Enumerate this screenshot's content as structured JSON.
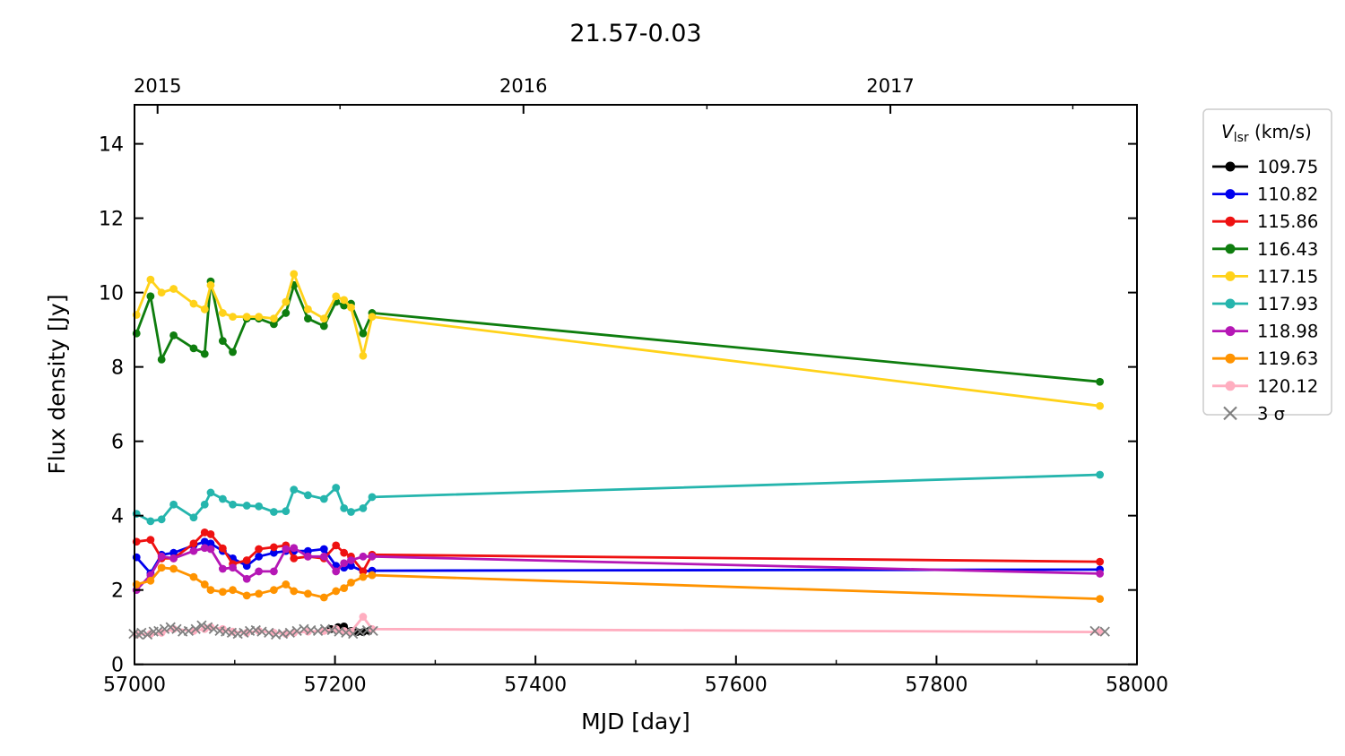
{
  "title": "21.57-0.03",
  "chart_data": {
    "type": "line",
    "title": "21.57-0.03",
    "xlabel": "MJD [day]",
    "ylabel": "Flux density [Jy]",
    "xlim": [
      57000,
      58000
    ],
    "ylim": [
      0,
      15.05
    ],
    "grid": false,
    "legend_position": "outside-right",
    "x_ticks": [
      57000,
      57200,
      57400,
      57600,
      57800,
      58000
    ],
    "x_minor_ticks": [
      57100,
      57300,
      57500,
      57700,
      57900
    ],
    "y_ticks": [
      0,
      2,
      4,
      6,
      8,
      10,
      12,
      14
    ],
    "top_ticks": [
      {
        "label": "2015",
        "mjd": 57023
      },
      {
        "label": "2016",
        "mjd": 57388
      },
      {
        "label": "2017",
        "mjd": 57754
      }
    ],
    "top_minor_ticks": [
      57205,
      57571,
      57936
    ],
    "legend": {
      "title_v": "V",
      "title_sub": "lsr",
      "title_rest": " (km/s)",
      "border_color": "#cccccc",
      "sigma_label": "3 σ"
    },
    "epochs": [
      57002,
      57016,
      57027,
      57039,
      57059,
      57070,
      57076,
      57088,
      57098,
      57112,
      57124,
      57139,
      57151,
      57159,
      57173,
      57189,
      57201,
      57209,
      57216,
      57228,
      57237,
      57963
    ],
    "series": [
      {
        "name": "109.75",
        "color": "#000000",
        "marker": "circle",
        "line": true,
        "x": [
          57196,
          57203,
          57209,
          57216,
          57222,
          57228,
          57234
        ],
        "values": [
          0.95,
          1.0,
          1.02,
          0.9,
          0.87,
          0.87,
          0.9
        ]
      },
      {
        "name": "110.82",
        "color": "#0000ee",
        "marker": "circle",
        "line": true,
        "values": [
          2.88,
          2.45,
          2.95,
          3.0,
          3.2,
          3.3,
          3.25,
          3.05,
          2.85,
          2.65,
          2.9,
          3.0,
          3.05,
          3.05,
          3.05,
          3.1,
          2.65,
          2.6,
          2.65,
          2.5,
          2.52,
          2.55
        ]
      },
      {
        "name": "115.86",
        "color": "#ee1111",
        "marker": "circle",
        "line": true,
        "values": [
          3.3,
          3.35,
          2.85,
          2.85,
          3.25,
          3.55,
          3.5,
          3.12,
          2.7,
          2.8,
          3.1,
          3.15,
          3.2,
          2.85,
          2.9,
          2.85,
          3.2,
          3.0,
          2.9,
          2.5,
          2.95,
          2.76
        ]
      },
      {
        "name": "116.43",
        "color": "#0e7d0e",
        "marker": "circle",
        "line": true,
        "values": [
          8.9,
          9.9,
          8.2,
          8.85,
          8.5,
          8.35,
          10.3,
          8.7,
          8.4,
          9.3,
          9.3,
          9.15,
          9.45,
          10.2,
          9.3,
          9.1,
          9.75,
          9.65,
          9.7,
          8.9,
          9.45,
          7.6
        ]
      },
      {
        "name": "117.15",
        "color": "#ffd21a",
        "marker": "circle",
        "line": true,
        "values": [
          9.4,
          10.35,
          10.0,
          10.1,
          9.7,
          9.55,
          10.2,
          9.45,
          9.35,
          9.35,
          9.35,
          9.3,
          9.75,
          10.5,
          9.55,
          9.3,
          9.9,
          9.8,
          9.6,
          8.3,
          9.35,
          6.95
        ]
      },
      {
        "name": "117.93",
        "color": "#25b5ad",
        "marker": "circle",
        "line": true,
        "values": [
          4.05,
          3.85,
          3.9,
          4.3,
          3.95,
          4.3,
          4.62,
          4.45,
          4.3,
          4.27,
          4.25,
          4.1,
          4.12,
          4.7,
          4.55,
          4.45,
          4.75,
          4.2,
          4.1,
          4.2,
          4.5,
          5.1
        ]
      },
      {
        "name": "118.98",
        "color": "#b517b5",
        "marker": "circle",
        "line": true,
        "values": [
          2.0,
          2.4,
          2.9,
          2.85,
          3.05,
          3.13,
          3.1,
          2.57,
          2.6,
          2.3,
          2.5,
          2.5,
          3.1,
          3.13,
          2.9,
          2.9,
          2.5,
          2.72,
          2.8,
          2.9,
          2.9,
          2.44
        ]
      },
      {
        "name": "119.63",
        "color": "#ff9300",
        "marker": "circle",
        "line": true,
        "values": [
          2.15,
          2.25,
          2.6,
          2.57,
          2.35,
          2.15,
          2.0,
          1.95,
          2.0,
          1.85,
          1.9,
          2.0,
          2.15,
          1.97,
          1.9,
          1.8,
          1.97,
          2.05,
          2.2,
          2.35,
          2.4,
          1.76
        ]
      },
      {
        "name": "120.12",
        "color": "#ffaec0",
        "marker": "circle",
        "line": true,
        "values": [
          0.8,
          0.82,
          0.85,
          0.95,
          0.9,
          0.95,
          1.0,
          0.95,
          0.88,
          0.85,
          0.9,
          0.85,
          0.82,
          0.85,
          0.88,
          0.9,
          0.95,
          0.9,
          0.88,
          1.28,
          0.95,
          0.87
        ]
      },
      {
        "name": "3 σ",
        "color": "#808080",
        "marker": "x",
        "line": false,
        "x": [
          56999,
          57004,
          57007,
          57013,
          57019,
          57024,
          57030,
          57036,
          57042,
          57048,
          57054,
          57061,
          57067,
          57073,
          57079,
          57085,
          57091,
          57097,
          57103,
          57109,
          57115,
          57121,
          57127,
          57134,
          57141,
          57148,
          57155,
          57162,
          57169,
          57176,
          57183,
          57190,
          57197,
          57204,
          57211,
          57218,
          57225,
          57232,
          57238,
          57958,
          57968
        ],
        "values": [
          0.82,
          0.8,
          0.85,
          0.8,
          0.88,
          0.9,
          0.95,
          1.0,
          0.95,
          0.88,
          0.9,
          0.95,
          1.05,
          1.0,
          0.95,
          0.9,
          0.88,
          0.85,
          0.82,
          0.85,
          0.9,
          0.92,
          0.88,
          0.85,
          0.8,
          0.82,
          0.85,
          0.9,
          0.95,
          0.92,
          0.9,
          0.95,
          0.92,
          0.88,
          0.85,
          0.82,
          0.88,
          0.92,
          0.9,
          0.9,
          0.88
        ]
      }
    ]
  }
}
